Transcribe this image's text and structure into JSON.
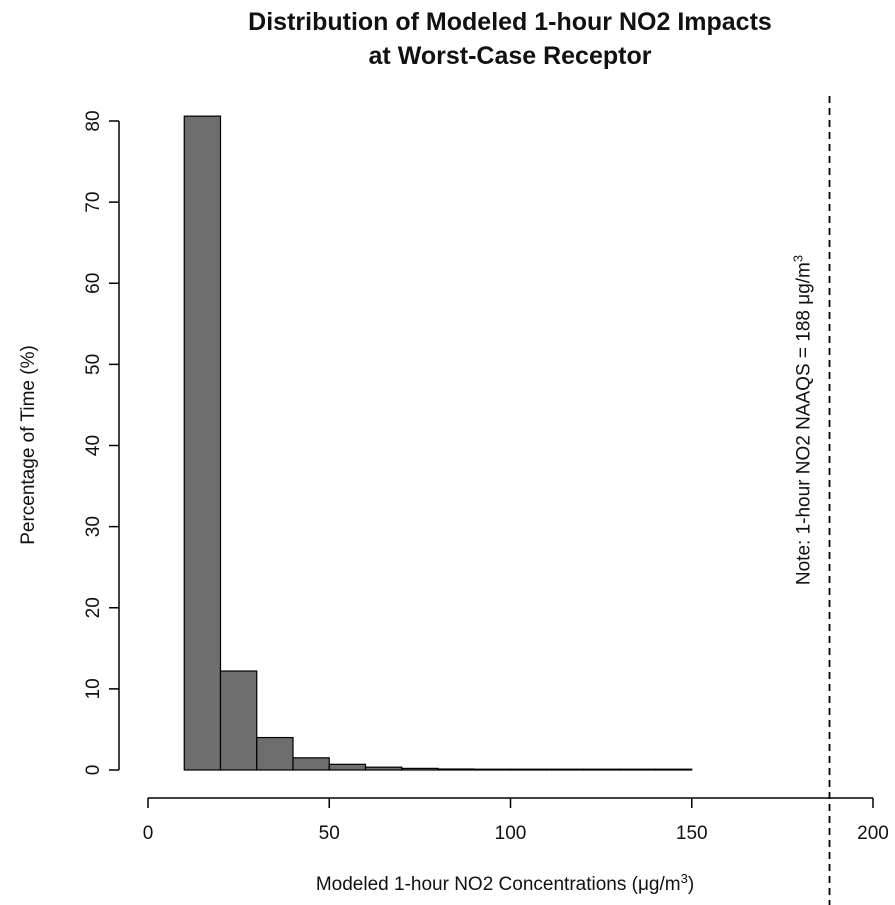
{
  "chart_data": {
    "type": "bar",
    "title_line1": "Distribution of Modeled 1-hour NO2 Impacts",
    "title_line2": "at Worst-Case Receptor",
    "xlabel_prefix": "Modeled 1-hour NO2 Concentrations (μg/m",
    "xlabel_sup": "3",
    "xlabel_suffix": ")",
    "ylabel": "Percentage of Time (%)",
    "xlim": [
      0,
      200
    ],
    "ylim": [
      0,
      80
    ],
    "x_ticks": [
      0,
      50,
      100,
      150,
      200
    ],
    "y_ticks": [
      0,
      10,
      20,
      30,
      40,
      50,
      60,
      70,
      80
    ],
    "bins": [
      {
        "start": 10,
        "end": 20,
        "value": 80.6
      },
      {
        "start": 20,
        "end": 30,
        "value": 12.2
      },
      {
        "start": 30,
        "end": 40,
        "value": 4.0
      },
      {
        "start": 40,
        "end": 50,
        "value": 1.5
      },
      {
        "start": 50,
        "end": 60,
        "value": 0.7
      },
      {
        "start": 60,
        "end": 70,
        "value": 0.35
      },
      {
        "start": 70,
        "end": 80,
        "value": 0.2
      },
      {
        "start": 80,
        "end": 90,
        "value": 0.12
      },
      {
        "start": 90,
        "end": 100,
        "value": 0.08
      },
      {
        "start": 100,
        "end": 110,
        "value": 0.05
      },
      {
        "start": 110,
        "end": 120,
        "value": 0.04
      },
      {
        "start": 120,
        "end": 130,
        "value": 0.03
      },
      {
        "start": 130,
        "end": 140,
        "value": 0.02
      },
      {
        "start": 140,
        "end": 150,
        "value": 0.02
      }
    ],
    "reference_line": {
      "x": 188,
      "style": "dashed",
      "note_prefix": "Note:  1-hour NO2 NAAQS = 188 μg/m",
      "note_sup": "3"
    },
    "grid": false,
    "legend": "none",
    "colors": {
      "bar_fill": "#6e6e6e",
      "bar_stroke": "#000000",
      "axis": "#000000"
    }
  }
}
